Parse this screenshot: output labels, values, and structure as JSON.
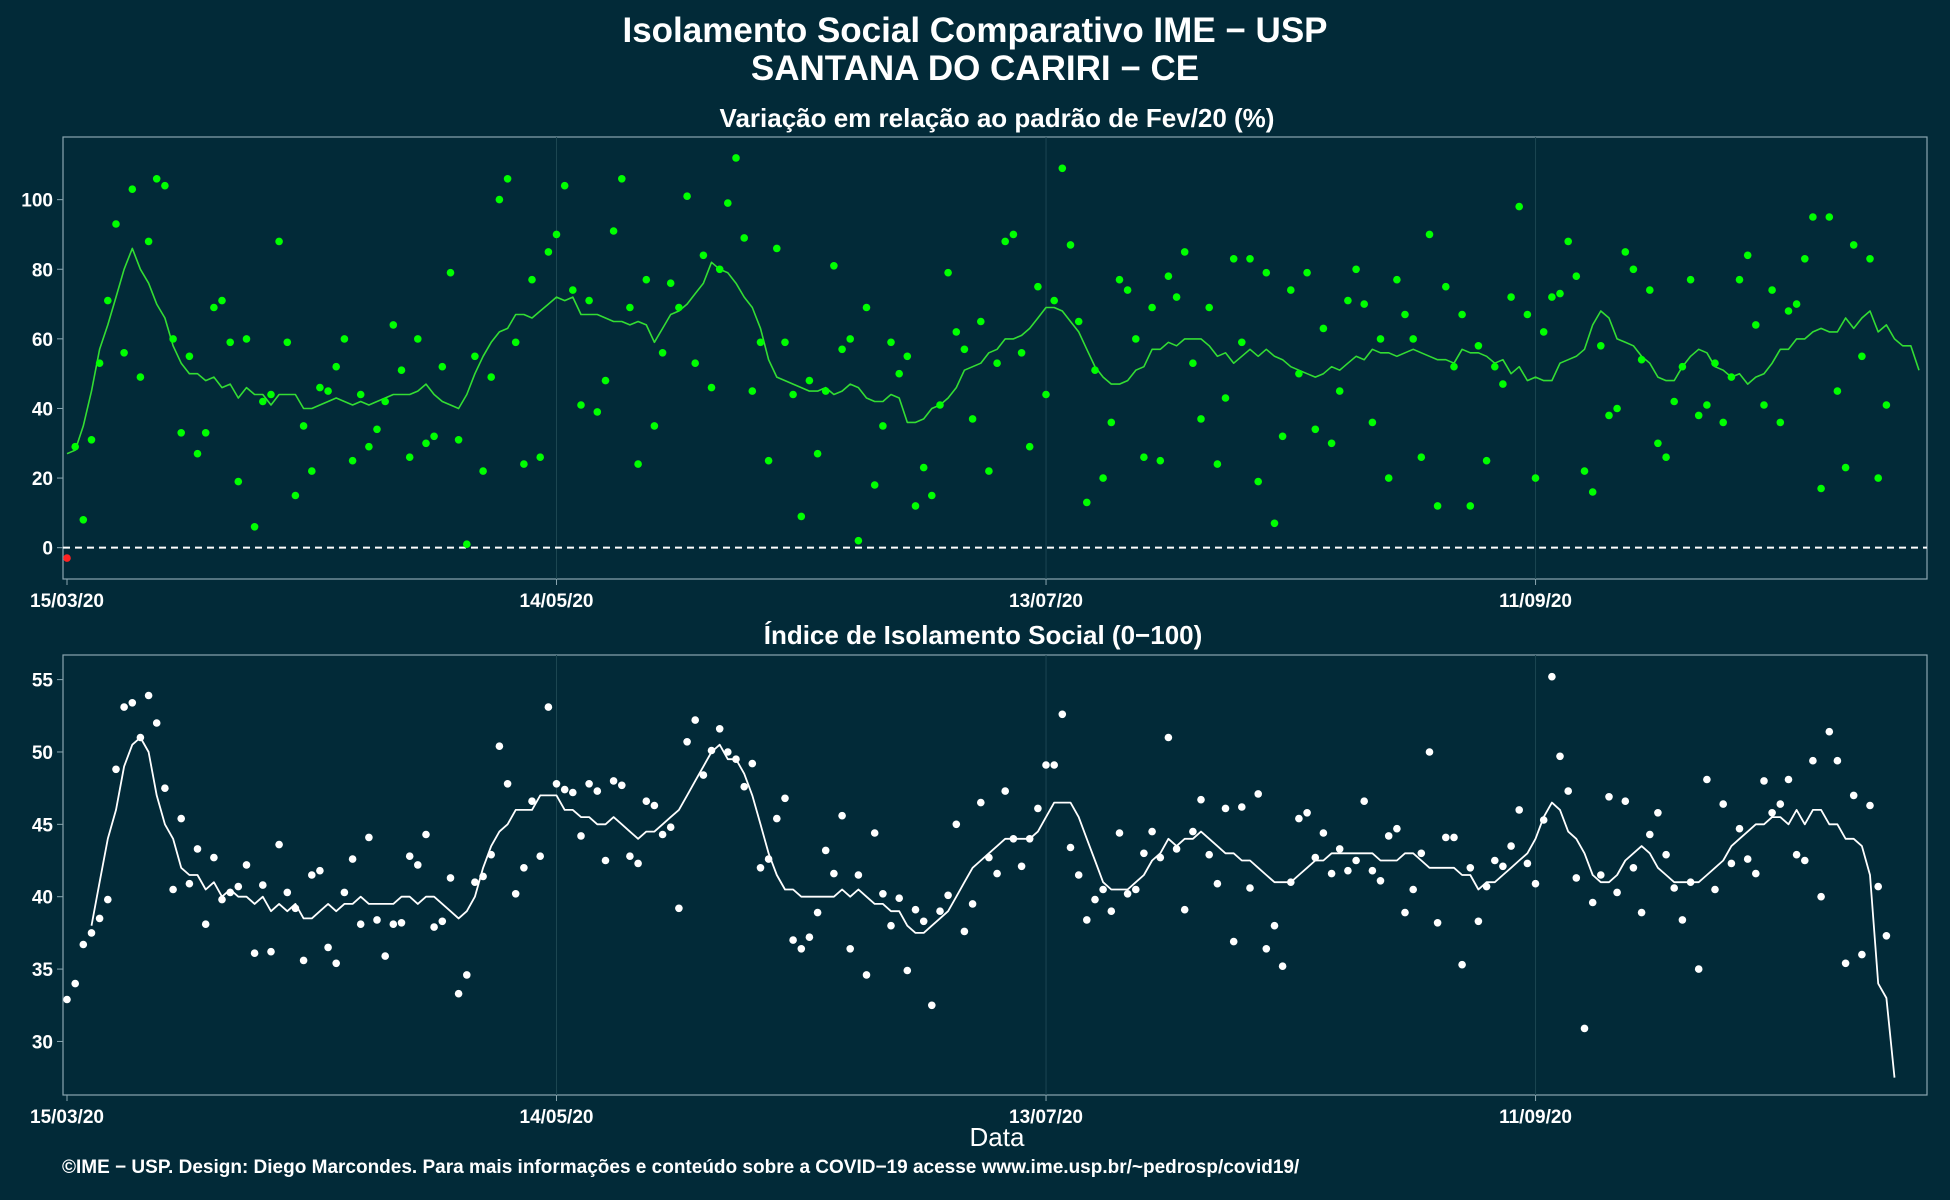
{
  "header": {
    "title": "Isolamento Social Comparativo IME − USP",
    "subtitle": "SANTANA DO CARIRI − CE"
  },
  "footer": {
    "credit": "©IME − USP. Design: Diego Marcondes. Para mais informações e conteúdo sobre a COVID−19 acesse www.ime.usp.br/~pedrosp/covid19/"
  },
  "colors": {
    "background": "#022a38",
    "top_points": "#00ff00",
    "top_line": "#33dd33",
    "negative_point": "#ff2222",
    "bottom_points": "#ffffff",
    "bottom_line": "#ffffff",
    "panel_border": "#8aa6b0",
    "grid": "#1c4652"
  },
  "chart_data": [
    {
      "type": "scatter",
      "title": "Variação em relação ao padrão de Fev/20 (%)",
      "xlabel": "",
      "ylabel": "",
      "x_start": "2020-03-15",
      "x_end": "2020-10-28",
      "x_ticks": [
        "15/03/20",
        "14/05/20",
        "13/07/20",
        "11/09/20"
      ],
      "y_ticks": [
        0,
        20,
        40,
        60,
        80,
        100
      ],
      "ylim": [
        -9,
        118
      ],
      "grid": false,
      "reference_line": {
        "y": 0,
        "style": "dashed"
      },
      "series": [
        {
          "style": "points",
          "values": [
            -3,
            29,
            8,
            31,
            53,
            71,
            93,
            56,
            103,
            49,
            88,
            106,
            104,
            60,
            33,
            55,
            27,
            33,
            69,
            71,
            59,
            19,
            60,
            6,
            42,
            44,
            88,
            59,
            15,
            35,
            22,
            46,
            45,
            52,
            60,
            25,
            44,
            29,
            34,
            42,
            64,
            51,
            26,
            60,
            30,
            32,
            52,
            79,
            31,
            1,
            55,
            22,
            49,
            100,
            106,
            59,
            24,
            77,
            26,
            85,
            90,
            104,
            74,
            41,
            71,
            39,
            48,
            91,
            106,
            69,
            24,
            77,
            35,
            56,
            76,
            69,
            101,
            53,
            84,
            46,
            80,
            99,
            112,
            89,
            45,
            59,
            25,
            86,
            59,
            44,
            9,
            48,
            27,
            45,
            81,
            57,
            60,
            2,
            69,
            18,
            35,
            59,
            50,
            55,
            12,
            23,
            15,
            41,
            79,
            62,
            57,
            37,
            65,
            22,
            53,
            88,
            90,
            56,
            29,
            75,
            44,
            71,
            109,
            87,
            65,
            13,
            51,
            20,
            36,
            77,
            74,
            60,
            26,
            69,
            25,
            78,
            72,
            85,
            53,
            37,
            69,
            24,
            43,
            83,
            59,
            83,
            19,
            79,
            7,
            32,
            74,
            50,
            79,
            34,
            63,
            30,
            45,
            71,
            80,
            70,
            36,
            60,
            20,
            77,
            67,
            60,
            26,
            90,
            12,
            75,
            52,
            67,
            12,
            58,
            25,
            52,
            47,
            72,
            98,
            67,
            20,
            62,
            72,
            73,
            88,
            78,
            22,
            16,
            58,
            38,
            40,
            85,
            80,
            54,
            74,
            30,
            26,
            42,
            52,
            77,
            38,
            41,
            53,
            36,
            49,
            77,
            84,
            64,
            41,
            74,
            36,
            68,
            70,
            83,
            95,
            17,
            95,
            45,
            23,
            87,
            55,
            83,
            20,
            41
          ]
        },
        {
          "style": "line",
          "values": [
            27,
            28,
            35,
            45,
            57,
            64,
            72,
            80,
            86,
            80,
            76,
            70,
            66,
            58,
            53,
            50,
            50,
            48,
            49,
            46,
            47,
            43,
            46,
            44,
            44,
            41,
            44,
            44,
            44,
            40,
            40,
            41,
            42,
            43,
            42,
            41,
            42,
            41,
            42,
            43,
            44,
            44,
            44,
            45,
            47,
            44,
            42,
            41,
            40,
            44,
            50,
            55,
            59,
            62,
            63,
            67,
            67,
            66,
            68,
            70,
            72,
            71,
            72,
            67,
            67,
            67,
            66,
            65,
            65,
            64,
            65,
            64,
            59,
            63,
            67,
            68,
            70,
            73,
            76,
            82,
            80,
            79,
            76,
            72,
            69,
            63,
            54,
            49,
            48,
            47,
            46,
            45,
            45,
            46,
            44,
            45,
            47,
            46,
            43,
            42,
            42,
            44,
            43,
            36,
            36,
            37,
            40,
            41,
            43,
            46,
            51,
            52,
            53,
            56,
            57,
            60,
            60,
            61,
            63,
            66,
            69,
            69,
            68,
            65,
            62,
            57,
            52,
            49,
            47,
            47,
            48,
            51,
            52,
            57,
            57,
            59,
            58,
            60,
            60,
            60,
            58,
            55,
            56,
            53,
            55,
            57,
            55,
            57,
            55,
            54,
            52,
            51,
            50,
            49,
            50,
            52,
            51,
            53,
            55,
            54,
            57,
            56,
            56,
            55,
            56,
            57,
            56,
            55,
            54,
            54,
            53,
            57,
            56,
            56,
            55,
            53,
            54,
            50,
            52,
            48,
            49,
            48,
            48,
            53,
            54,
            55,
            57,
            64,
            68,
            66,
            60,
            59,
            58,
            55,
            53,
            49,
            48,
            48,
            52,
            55,
            57,
            56,
            52,
            51,
            49,
            50,
            47,
            49,
            50,
            53,
            57,
            57,
            60,
            60,
            62,
            63,
            62,
            62,
            66,
            63,
            66,
            68,
            62,
            64,
            60,
            58,
            58,
            51
          ]
        }
      ]
    },
    {
      "type": "scatter",
      "title": "Índice de Isolamento Social (0−100)",
      "xlabel": "Data",
      "ylabel": "",
      "x_start": "2020-03-15",
      "x_end": "2020-10-28",
      "x_ticks": [
        "15/03/20",
        "14/05/20",
        "13/07/20",
        "11/09/20"
      ],
      "y_ticks": [
        30,
        35,
        40,
        45,
        50,
        55
      ],
      "ylim": [
        26.3,
        56.7
      ],
      "grid": false,
      "series": [
        {
          "style": "points",
          "values": [
            32.9,
            34.0,
            36.7,
            37.5,
            38.5,
            39.8,
            48.8,
            53.1,
            53.4,
            51.0,
            53.9,
            52.0,
            47.5,
            40.5,
            45.4,
            40.9,
            43.3,
            38.1,
            42.7,
            39.8,
            40.3,
            40.7,
            42.2,
            36.1,
            40.8,
            36.2,
            43.6,
            40.3,
            39.2,
            35.6,
            41.5,
            41.8,
            36.5,
            35.4,
            40.3,
            42.6,
            38.1,
            44.1,
            38.4,
            35.9,
            38.1,
            38.2,
            42.8,
            42.2,
            44.3,
            37.9,
            38.3,
            41.3,
            33.3,
            34.6,
            41.0,
            41.4,
            42.9,
            50.4,
            47.8,
            40.2,
            42.0,
            46.6,
            42.8,
            53.1,
            47.8,
            47.4,
            47.2,
            44.2,
            47.8,
            47.3,
            42.5,
            48.0,
            47.7,
            42.8,
            42.3,
            46.6,
            46.3,
            44.3,
            44.8,
            39.2,
            50.7,
            52.2,
            48.4,
            50.1,
            51.6,
            50.0,
            49.5,
            47.6,
            49.2,
            42.0,
            42.6,
            45.4,
            46.8,
            37.0,
            36.4,
            37.2,
            38.9,
            43.2,
            41.6,
            45.6,
            36.4,
            41.5,
            34.6,
            44.4,
            40.2,
            38.0,
            39.9,
            34.9,
            39.1,
            38.3,
            32.5,
            39.0,
            40.1,
            45.0,
            37.6,
            39.5,
            46.5,
            42.7,
            41.6,
            47.3,
            44.0,
            42.1,
            44.0,
            46.1,
            49.1,
            49.1,
            52.6,
            43.4,
            41.5,
            38.4,
            39.8,
            40.5,
            39.0,
            44.4,
            40.2,
            40.5,
            43.0,
            44.5,
            42.7,
            51.0,
            43.3,
            39.1,
            44.5,
            46.7,
            42.9,
            40.9,
            46.1,
            36.9,
            46.2,
            40.6,
            47.1,
            36.4,
            38.0,
            35.2,
            41.0,
            45.4,
            45.8,
            42.7,
            44.4,
            41.6,
            43.3,
            41.8,
            42.5,
            46.6,
            41.8,
            41.1,
            44.2,
            44.7,
            38.9,
            40.5,
            43.0,
            50.0,
            38.2,
            44.1,
            44.1,
            35.3,
            42.0,
            38.3,
            40.7,
            42.5,
            42.1,
            43.5,
            46.0,
            42.3,
            40.9,
            45.3,
            55.2,
            49.7,
            47.3,
            41.3,
            30.9,
            39.6,
            41.5,
            46.9,
            40.3,
            46.6,
            42.0,
            38.9,
            44.3,
            45.8,
            42.9,
            40.6,
            38.4,
            41.0,
            35.0,
            48.1,
            40.5,
            46.4,
            42.3,
            44.7,
            42.6,
            41.6,
            48.0,
            45.8,
            46.4,
            48.1,
            42.9,
            42.5,
            49.4,
            40.0,
            51.4,
            49.4,
            35.4,
            47.0,
            36.0,
            46.3,
            40.7,
            37.3
          ]
        },
        {
          "style": "line",
          "values": [
            null,
            null,
            null,
            38.0,
            41.0,
            44.0,
            46.0,
            49.0,
            50.5,
            51.0,
            50.0,
            47.0,
            45.0,
            44.0,
            42.0,
            41.5,
            41.5,
            40.5,
            41.0,
            40.0,
            40.5,
            40.0,
            40.0,
            39.5,
            40.0,
            39.0,
            39.5,
            39.0,
            39.5,
            38.5,
            38.5,
            39.0,
            39.5,
            39.0,
            39.5,
            39.5,
            40.0,
            39.5,
            39.5,
            39.5,
            39.5,
            40.0,
            40.0,
            39.5,
            40.0,
            40.0,
            39.5,
            39.0,
            38.5,
            39.0,
            40.0,
            42.0,
            43.5,
            44.5,
            45.0,
            46.0,
            46.0,
            46.0,
            47.0,
            47.0,
            47.0,
            46.0,
            46.0,
            45.5,
            45.5,
            45.0,
            45.0,
            45.5,
            45.0,
            44.5,
            44.0,
            44.5,
            44.5,
            45.0,
            45.5,
            46.0,
            47.0,
            48.0,
            49.0,
            50.0,
            50.5,
            49.5,
            49.5,
            48.5,
            47.0,
            45.0,
            43.0,
            41.5,
            40.5,
            40.5,
            40.0,
            40.0,
            40.0,
            40.0,
            40.0,
            40.5,
            40.0,
            40.5,
            40.0,
            39.5,
            39.5,
            39.0,
            39.0,
            38.0,
            37.5,
            37.5,
            38.0,
            38.5,
            39.0,
            40.0,
            41.0,
            42.0,
            42.5,
            43.0,
            43.5,
            44.0,
            44.0,
            44.0,
            44.0,
            44.5,
            45.5,
            46.5,
            46.5,
            46.5,
            45.5,
            44.0,
            42.5,
            41.0,
            40.5,
            40.5,
            40.5,
            41.0,
            41.5,
            42.5,
            43.0,
            44.0,
            43.5,
            44.0,
            44.0,
            44.5,
            44.0,
            43.5,
            43.0,
            43.0,
            42.5,
            42.5,
            42.0,
            41.5,
            41.0,
            41.0,
            41.0,
            41.5,
            42.0,
            42.5,
            42.5,
            43.0,
            43.0,
            43.0,
            43.0,
            43.0,
            43.0,
            42.5,
            42.5,
            42.5,
            43.0,
            43.0,
            42.5,
            42.0,
            42.0,
            42.0,
            42.0,
            41.5,
            41.5,
            40.5,
            41.0,
            41.0,
            41.5,
            42.0,
            42.5,
            43.0,
            44.0,
            45.5,
            46.5,
            46.0,
            44.5,
            44.0,
            43.0,
            41.5,
            41.0,
            41.0,
            41.5,
            42.5,
            43.0,
            43.5,
            43.0,
            42.0,
            41.5,
            41.0,
            41.0,
            41.0,
            41.0,
            41.5,
            42.0,
            42.5,
            43.5,
            44.0,
            44.5,
            45.0,
            45.0,
            45.5,
            45.5,
            45.0,
            46.0,
            45.0,
            46.0,
            46.0,
            45.0,
            45.0,
            44.0,
            44.0,
            43.5,
            41.5,
            34.0,
            33.0,
            27.5
          ]
        }
      ]
    }
  ]
}
